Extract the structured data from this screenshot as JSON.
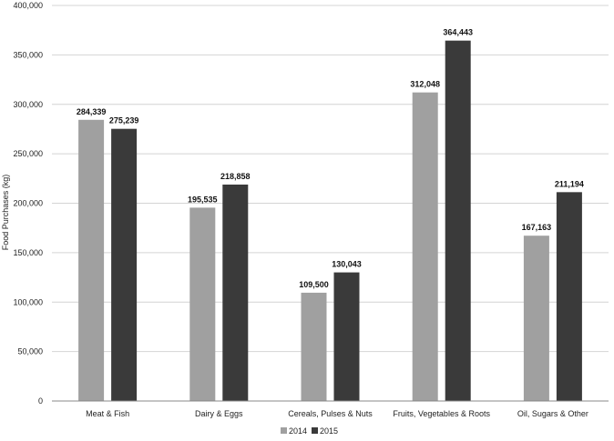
{
  "chart_data": {
    "type": "bar",
    "title": "",
    "xlabel": "",
    "ylabel": "Food Purchases (kg)",
    "ylim": [
      0,
      400000
    ],
    "y_ticks": [
      "0",
      "50,000",
      "100,000",
      "150,000",
      "200,000",
      "250,000",
      "300,000",
      "350,000",
      "400,000"
    ],
    "grid": true,
    "legend_position": "bottom",
    "categories": [
      "Meat & Fish",
      "Dairy & Eggs",
      "Cereals, Pulses & Nuts",
      "Fruits, Vegetables & Roots",
      "Oil, Sugars & Other"
    ],
    "series": [
      {
        "name": "2014",
        "color": "#a0a0a0",
        "values": [
          284339,
          195535,
          109500,
          312048,
          167163
        ],
        "labels": [
          "284,339",
          "195,535",
          "109,500",
          "312,048",
          "167,163"
        ]
      },
      {
        "name": "2015",
        "color": "#3a3a3a",
        "values": [
          275239,
          218858,
          130043,
          364443,
          211194
        ],
        "labels": [
          "275,239",
          "218,858",
          "130,043",
          "364,443",
          "211,194"
        ]
      }
    ]
  }
}
